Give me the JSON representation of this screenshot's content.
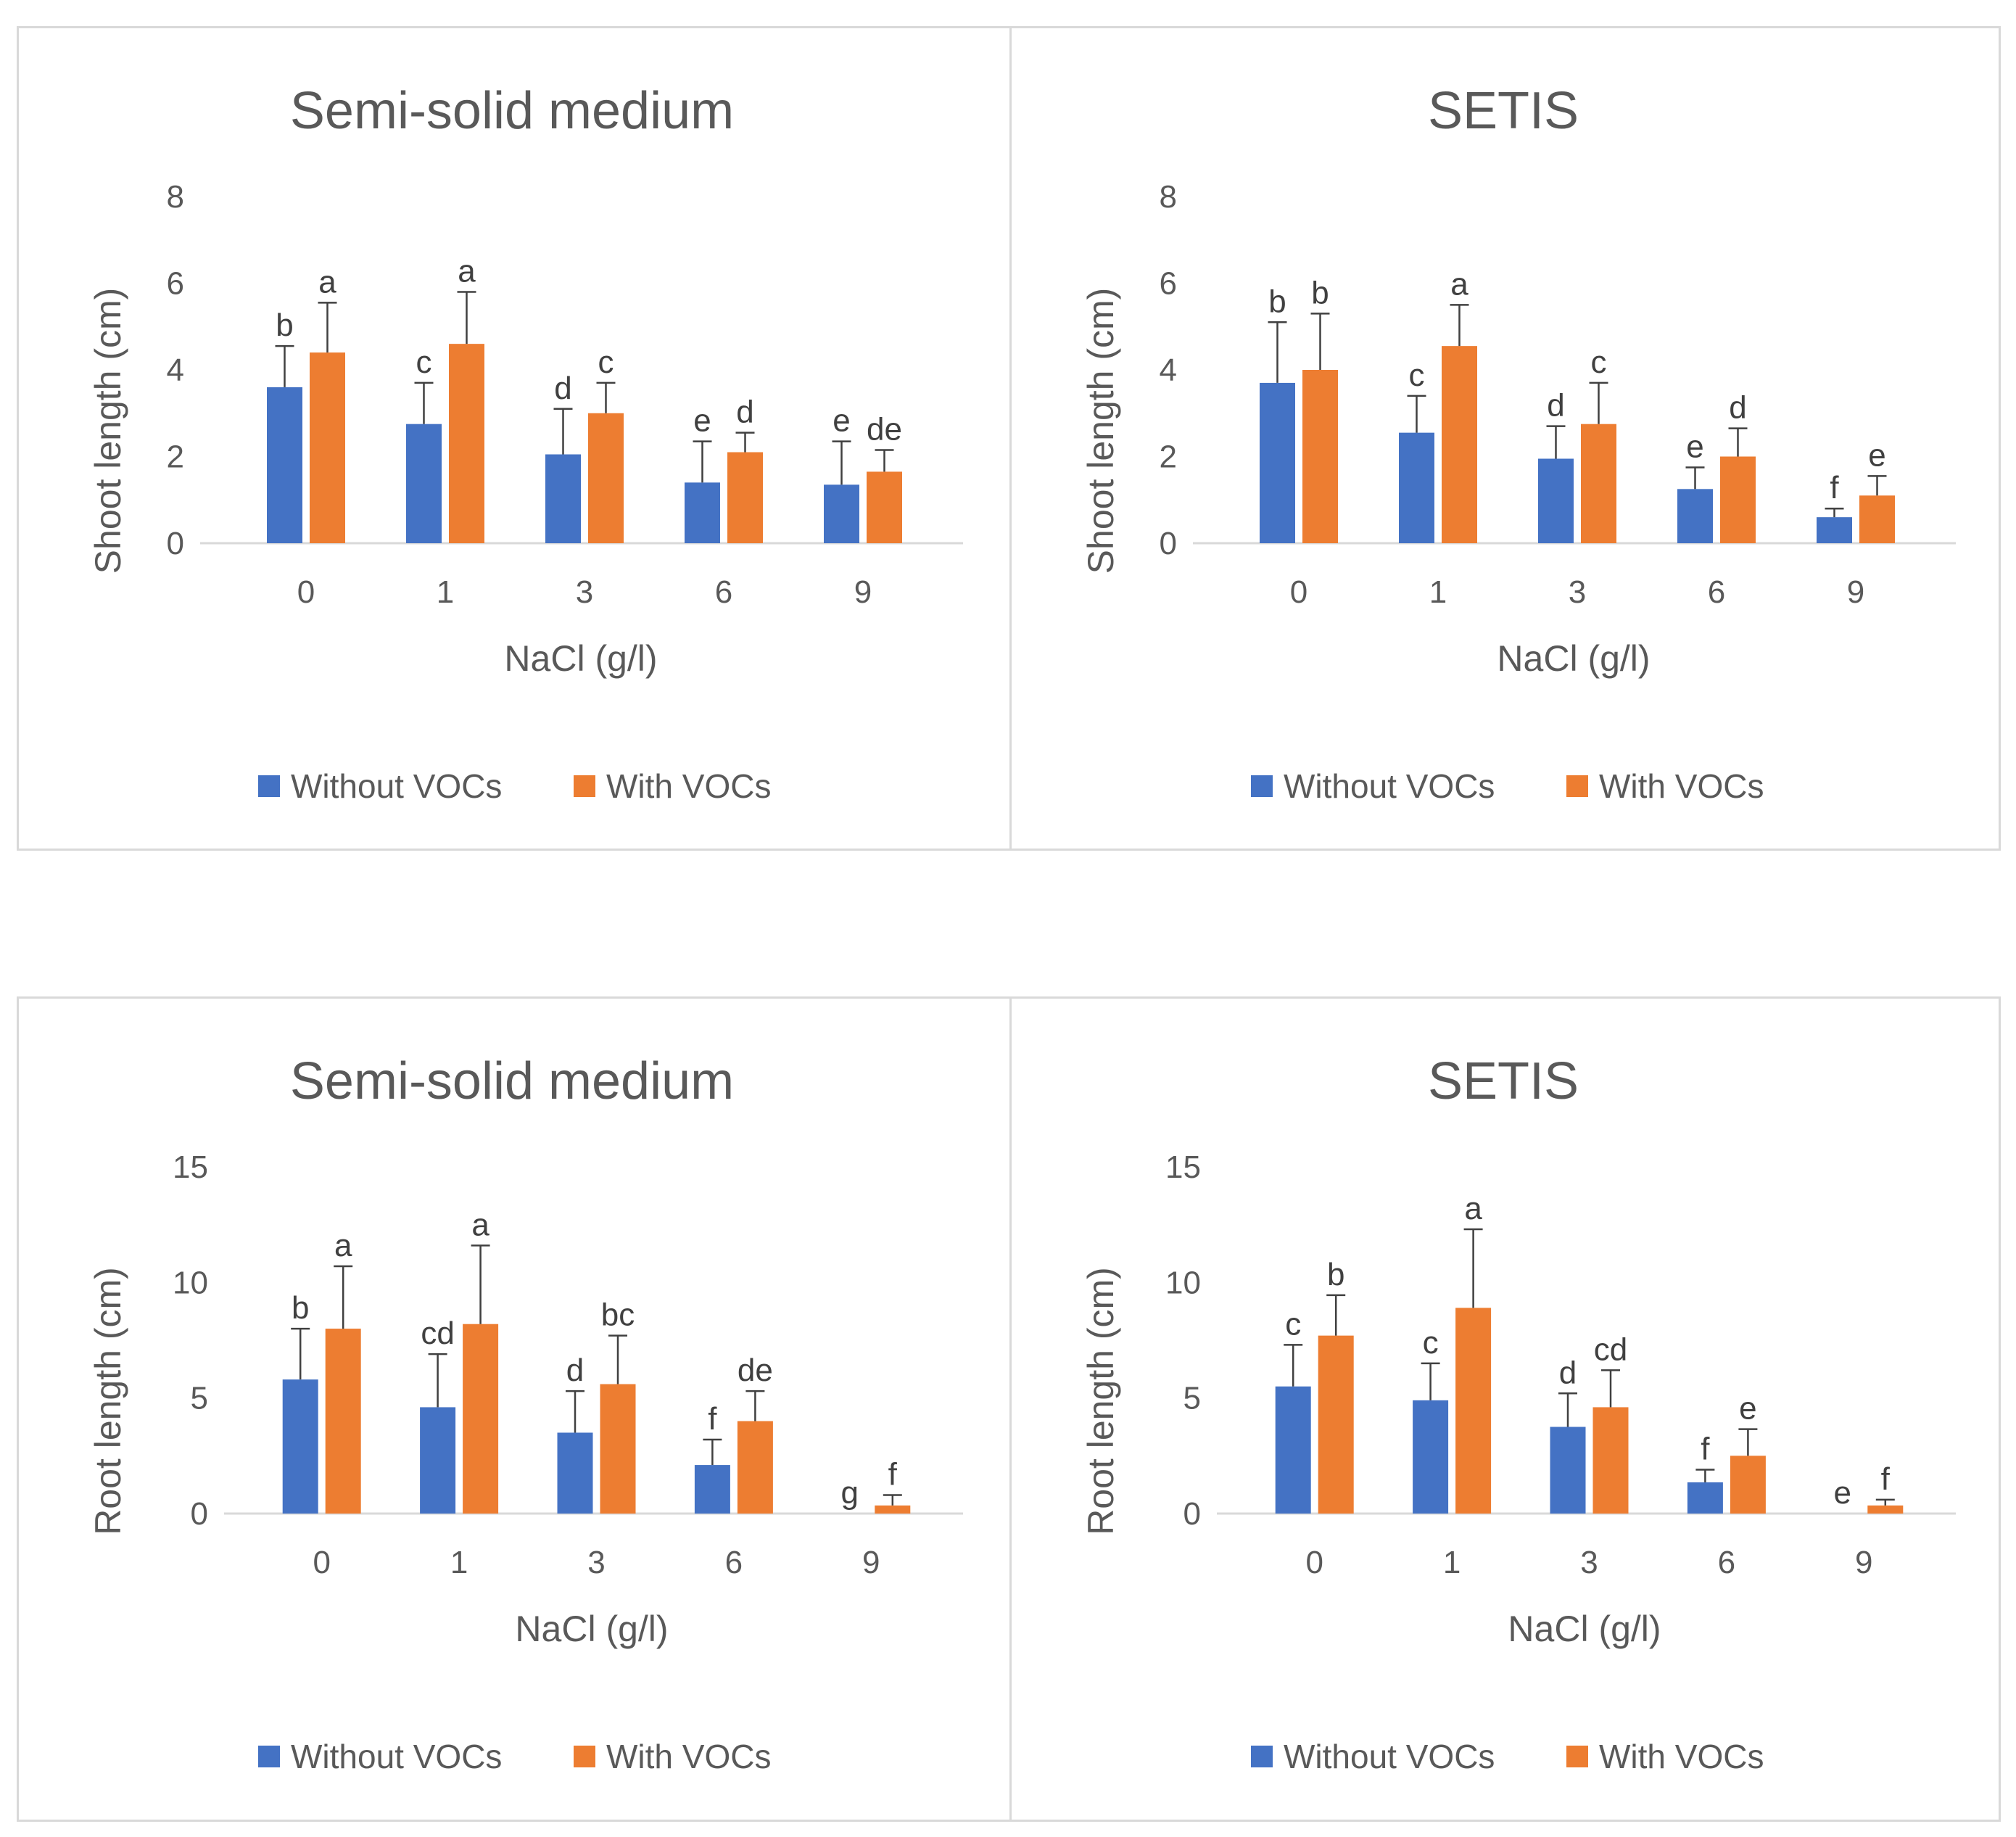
{
  "colors": {
    "without": "#4472C4",
    "with": "#ED7D31",
    "axis": "#d9d9d9",
    "text": "#595959",
    "errorbar": "#404040"
  },
  "chart_data": [
    {
      "type": "bar",
      "title": "Semi-solid medium",
      "xlabel": "NaCl (g/l)",
      "ylabel": "Shoot length (cm)",
      "ylim": [
        0,
        8
      ],
      "yticks": [
        "0",
        "2",
        "4",
        "6",
        "8"
      ],
      "categories": [
        "0",
        "1",
        "3",
        "6",
        "9"
      ],
      "series": [
        {
          "name": "Without VOCs",
          "values": [
            3.6,
            2.75,
            2.05,
            1.4,
            1.35
          ],
          "errors": [
            0.95,
            0.95,
            1.05,
            0.95,
            1.0
          ],
          "letters": [
            "b",
            "c",
            "d",
            "e",
            "e"
          ]
        },
        {
          "name": "With VOCs",
          "values": [
            4.4,
            4.6,
            3.0,
            2.1,
            1.65
          ],
          "errors": [
            1.15,
            1.2,
            0.7,
            0.45,
            0.5
          ],
          "letters": [
            "a",
            "a",
            "c",
            "d",
            "de"
          ]
        }
      ]
    },
    {
      "type": "bar",
      "title": "SETIS",
      "xlabel": "NaCl (g/l)",
      "ylabel": "Shoot length (cm)",
      "ylim": [
        0,
        8
      ],
      "yticks": [
        "0",
        "2",
        "4",
        "6",
        "8"
      ],
      "categories": [
        "0",
        "1",
        "3",
        "6",
        "9"
      ],
      "series": [
        {
          "name": "Without VOCs",
          "values": [
            3.7,
            2.55,
            1.95,
            1.25,
            0.6
          ],
          "errors": [
            1.4,
            0.85,
            0.75,
            0.5,
            0.2
          ],
          "letters": [
            "b",
            "c",
            "d",
            "e",
            "f"
          ]
        },
        {
          "name": "With VOCs",
          "values": [
            4.0,
            4.55,
            2.75,
            2.0,
            1.1
          ],
          "errors": [
            1.3,
            0.95,
            0.95,
            0.65,
            0.45
          ],
          "letters": [
            "b",
            "a",
            "c",
            "d",
            "e"
          ]
        }
      ]
    },
    {
      "type": "bar",
      "title": "Semi-solid medium",
      "xlabel": "NaCl (g/l)",
      "ylabel": "Root length (cm)",
      "ylim": [
        0,
        15
      ],
      "yticks": [
        "0",
        "5",
        "10",
        "15"
      ],
      "categories": [
        "0",
        "1",
        "3",
        "6",
        "9"
      ],
      "series": [
        {
          "name": "Without VOCs",
          "values": [
            5.8,
            4.6,
            3.5,
            2.1,
            0
          ],
          "errors": [
            2.2,
            2.3,
            1.8,
            1.1,
            0
          ],
          "letters": [
            "b",
            "cd",
            "d",
            "f",
            "g"
          ]
        },
        {
          "name": "With VOCs",
          "values": [
            8.0,
            8.2,
            5.6,
            4.0,
            0.35
          ],
          "errors": [
            2.7,
            3.4,
            2.1,
            1.3,
            0.45
          ],
          "letters": [
            "a",
            "a",
            "bc",
            "de",
            "f"
          ]
        }
      ]
    },
    {
      "type": "bar",
      "title": "SETIS",
      "xlabel": "NaCl (g/l)",
      "ylabel": "Root length (cm)",
      "ylim": [
        0,
        15
      ],
      "yticks": [
        "0",
        "5",
        "10",
        "15"
      ],
      "categories": [
        "0",
        "1",
        "3",
        "6",
        "9"
      ],
      "series": [
        {
          "name": "Without VOCs",
          "values": [
            5.5,
            4.9,
            3.75,
            1.35,
            0
          ],
          "errors": [
            1.8,
            1.6,
            1.45,
            0.55,
            0
          ],
          "letters": [
            "c",
            "c",
            "d",
            "f",
            "e"
          ]
        },
        {
          "name": "With VOCs",
          "values": [
            7.7,
            8.9,
            4.6,
            2.5,
            0.35
          ],
          "errors": [
            1.75,
            3.4,
            1.6,
            1.15,
            0.25
          ],
          "letters": [
            "b",
            "a",
            "cd",
            "e",
            "f"
          ]
        }
      ]
    }
  ]
}
